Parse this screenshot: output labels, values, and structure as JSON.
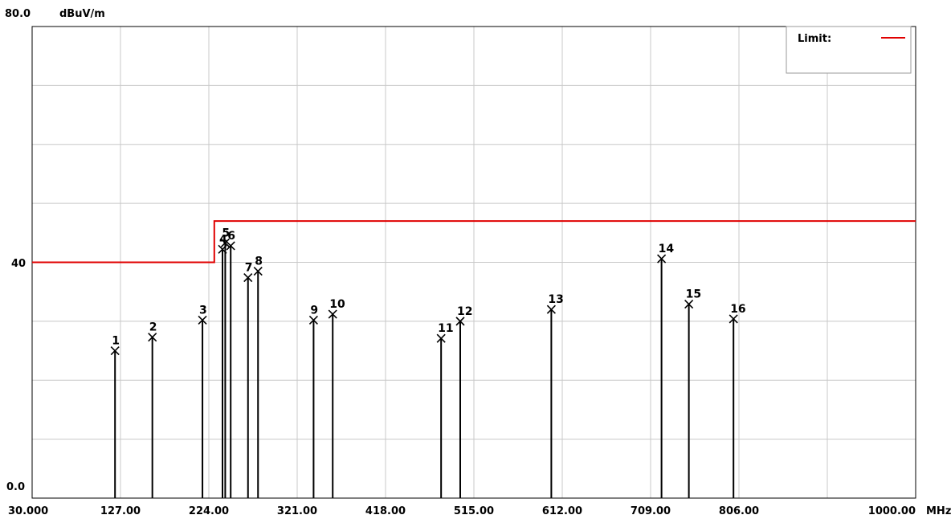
{
  "chart_data": {
    "type": "line",
    "y_top_label": "80.0",
    "unit_label": "dBuV/m",
    "y_mid_label": "40",
    "y_bottom_label": "0.0",
    "x_unit": "MHz",
    "xlim": [
      30,
      1000
    ],
    "ylim": [
      0,
      80
    ],
    "grid": true,
    "x_tick_labels": [
      {
        "value": 30,
        "text": "30.000"
      },
      {
        "value": 127,
        "text": "127.00"
      },
      {
        "value": 224,
        "text": "224.00"
      },
      {
        "value": 321,
        "text": "321.00"
      },
      {
        "value": 418,
        "text": "418.00"
      },
      {
        "value": 515,
        "text": "515.00"
      },
      {
        "value": 612,
        "text": "612.00"
      },
      {
        "value": 709,
        "text": "709.00"
      },
      {
        "value": 806,
        "text": "806.00"
      },
      {
        "value": 1000,
        "text": "1000.00"
      }
    ],
    "legend": {
      "label": "Limit:",
      "color": "#e00000",
      "position": "top-right"
    },
    "limit_line": {
      "color": "#e00000",
      "points": [
        [
          30,
          40
        ],
        [
          230,
          40
        ],
        [
          230,
          47
        ],
        [
          1000,
          47
        ]
      ]
    },
    "markers": [
      {
        "id": "1",
        "x": 121,
        "y": 25
      },
      {
        "id": "2",
        "x": 162,
        "y": 27.3
      },
      {
        "id": "3",
        "x": 217,
        "y": 30.2
      },
      {
        "id": "4",
        "x": 239,
        "y": 42.2
      },
      {
        "id": "5",
        "x": 242,
        "y": 43.3
      },
      {
        "id": "6",
        "x": 248,
        "y": 42.8
      },
      {
        "id": "7",
        "x": 267,
        "y": 37.4
      },
      {
        "id": "8",
        "x": 278,
        "y": 38.5
      },
      {
        "id": "9",
        "x": 339,
        "y": 30.2
      },
      {
        "id": "10",
        "x": 360,
        "y": 31.2
      },
      {
        "id": "11",
        "x": 479,
        "y": 27.1
      },
      {
        "id": "12",
        "x": 500,
        "y": 30.0
      },
      {
        "id": "13",
        "x": 600,
        "y": 32.0
      },
      {
        "id": "14",
        "x": 721,
        "y": 40.6
      },
      {
        "id": "15",
        "x": 751,
        "y": 32.9
      },
      {
        "id": "16",
        "x": 800,
        "y": 30.4
      }
    ]
  }
}
